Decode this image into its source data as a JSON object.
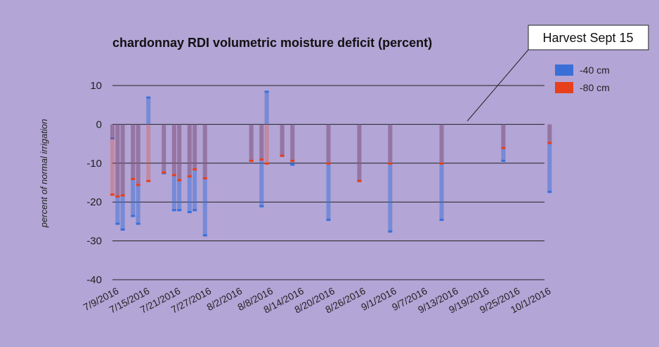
{
  "chart_data": {
    "type": "bar",
    "title": "chardonnay RDI volumetric moisture deficit (percent)",
    "xlabel": "",
    "ylabel": "percent of normal irrigation",
    "ylim": [
      -40,
      10
    ],
    "yticks": [
      10,
      0,
      -10,
      -20,
      -30,
      -40
    ],
    "x_tick_labels": [
      "7/9/2016",
      "7/15/2016",
      "7/21/2016",
      "7/27/2016",
      "8/2/2016",
      "8/8/2016",
      "8/14/2016",
      "8/20/2016",
      "8/26/2016",
      "9/1/2016",
      "9/7/2016",
      "9/13/2016",
      "9/19/2016",
      "9/25/2016",
      "10/1/2016"
    ],
    "grid": true,
    "legend_position": "top-right",
    "colors": {
      "s40": "#3a6fd8",
      "s80": "#e8401c",
      "background": "#b3a5d6"
    },
    "series": [
      {
        "name": "-40 cm",
        "points": [
          {
            "date": "7/9/2016",
            "value": -3.5
          },
          {
            "date": "7/10/2016",
            "value": -25.5
          },
          {
            "date": "7/11/2016",
            "value": -27
          },
          {
            "date": "7/13/2016",
            "value": -23.5
          },
          {
            "date": "7/14/2016",
            "value": -25.5
          },
          {
            "date": "7/16/2016",
            "value": 7
          },
          {
            "date": "7/19/2016",
            "value": -12.5
          },
          {
            "date": "7/21/2016",
            "value": -22
          },
          {
            "date": "7/22/2016",
            "value": -22
          },
          {
            "date": "7/24/2016",
            "value": -22.5
          },
          {
            "date": "7/25/2016",
            "value": -22
          },
          {
            "date": "7/27/2016",
            "value": -28.5
          },
          {
            "date": "8/5/2016",
            "value": -9.3
          },
          {
            "date": "8/7/2016",
            "value": -21
          },
          {
            "date": "8/8/2016",
            "value": 8.5
          },
          {
            "date": "8/11/2016",
            "value": -8
          },
          {
            "date": "8/13/2016",
            "value": -10.3
          },
          {
            "date": "8/20/2016",
            "value": -24.5
          },
          {
            "date": "8/26/2016",
            "value": -14.5
          },
          {
            "date": "9/1/2016",
            "value": -27.5
          },
          {
            "date": "9/11/2016",
            "value": -24.5
          },
          {
            "date": "9/23/2016",
            "value": -9.3
          },
          {
            "date": "10/2/2016",
            "value": -17.3
          }
        ]
      },
      {
        "name": "-80 cm",
        "points": [
          {
            "date": "7/9/2016",
            "value": -18
          },
          {
            "date": "7/10/2016",
            "value": -18.5
          },
          {
            "date": "7/11/2016",
            "value": -18.2
          },
          {
            "date": "7/13/2016",
            "value": -14
          },
          {
            "date": "7/14/2016",
            "value": -15.5
          },
          {
            "date": "7/16/2016",
            "value": -14.5
          },
          {
            "date": "7/19/2016",
            "value": -12.3
          },
          {
            "date": "7/21/2016",
            "value": -13
          },
          {
            "date": "7/22/2016",
            "value": -14.3
          },
          {
            "date": "7/24/2016",
            "value": -13.3
          },
          {
            "date": "7/25/2016",
            "value": -11.5
          },
          {
            "date": "7/27/2016",
            "value": -13.8
          },
          {
            "date": "8/5/2016",
            "value": -9.3
          },
          {
            "date": "8/7/2016",
            "value": -9
          },
          {
            "date": "8/8/2016",
            "value": -10
          },
          {
            "date": "8/11/2016",
            "value": -8
          },
          {
            "date": "8/13/2016",
            "value": -9.3
          },
          {
            "date": "8/20/2016",
            "value": -10
          },
          {
            "date": "8/26/2016",
            "value": -14.5
          },
          {
            "date": "9/1/2016",
            "value": -10
          },
          {
            "date": "9/11/2016",
            "value": -10
          },
          {
            "date": "9/23/2016",
            "value": -6
          },
          {
            "date": "10/2/2016",
            "value": -4.7
          }
        ]
      }
    ],
    "annotations": [
      {
        "text": "Harvest Sept 15",
        "target_date": "9/16/2016",
        "target_value": 0.5
      }
    ]
  }
}
